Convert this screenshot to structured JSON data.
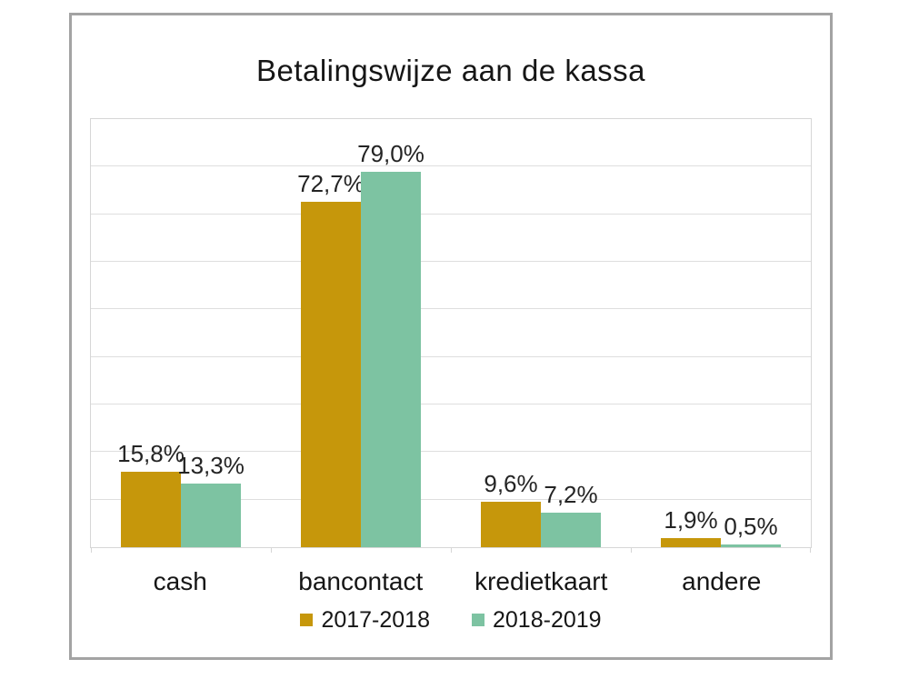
{
  "title": "Betalingswijze aan de kassa",
  "chart_data": {
    "type": "bar",
    "title": "Betalingswijze aan de kassa",
    "categories": [
      "cash",
      "bancontact",
      "kredietkaart",
      "andere"
    ],
    "series": [
      {
        "name": "2017-2018",
        "color": "#C6970B",
        "values": [
          15.8,
          72.7,
          9.6,
          1.9
        ],
        "value_labels": [
          "15,8%",
          "72,7%",
          "9,6%",
          "1,9%"
        ]
      },
      {
        "name": "2018-2019",
        "color": "#7DC3A2",
        "values": [
          13.3,
          79.0,
          7.2,
          0.5
        ],
        "value_labels": [
          "13,3%",
          "79,0%",
          "7,2%",
          "0,5%"
        ]
      }
    ],
    "xlabel": "",
    "ylabel": "",
    "ylim": [
      0,
      90
    ],
    "grid_step": 10,
    "grid": "horizontal",
    "y_tick_labels_visible": false,
    "legend_position": "bottom"
  },
  "colors": {
    "frame_border": "#A3A3A3",
    "plot_border": "#D6D6D6",
    "gridline": "#DEDEDE",
    "text": "#161616",
    "background": "#FFFFFF"
  }
}
